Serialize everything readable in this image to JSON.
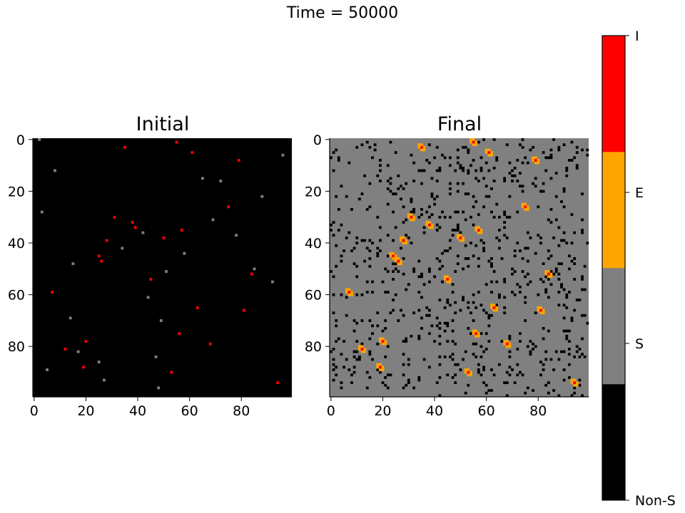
{
  "figure": {
    "suptitle": "Time = 50000"
  },
  "colors": {
    "nonS": "#000000",
    "S": "#808080",
    "E": "#ffa500",
    "I": "#ff0000"
  },
  "chart_data": [
    {
      "type": "heatmap",
      "title": "Initial",
      "grid_size": [
        100,
        100
      ],
      "x_ticks": [
        0,
        20,
        40,
        60,
        80
      ],
      "y_ticks": [
        0,
        20,
        40,
        60,
        80
      ],
      "background_state": "Non-S",
      "cells": [
        {
          "x": 35,
          "y": 3,
          "state": "I"
        },
        {
          "x": 55,
          "y": 1,
          "state": "I"
        },
        {
          "x": 61,
          "y": 5,
          "state": "I"
        },
        {
          "x": 79,
          "y": 8,
          "state": "I"
        },
        {
          "x": 75,
          "y": 26,
          "state": "I"
        },
        {
          "x": 31,
          "y": 30,
          "state": "I"
        },
        {
          "x": 38,
          "y": 32,
          "state": "I"
        },
        {
          "x": 39,
          "y": 34,
          "state": "I"
        },
        {
          "x": 57,
          "y": 35,
          "state": "I"
        },
        {
          "x": 50,
          "y": 38,
          "state": "I"
        },
        {
          "x": 28,
          "y": 39,
          "state": "I"
        },
        {
          "x": 25,
          "y": 45,
          "state": "I"
        },
        {
          "x": 26,
          "y": 47,
          "state": "I"
        },
        {
          "x": 84,
          "y": 52,
          "state": "I"
        },
        {
          "x": 45,
          "y": 54,
          "state": "I"
        },
        {
          "x": 7,
          "y": 59,
          "state": "I"
        },
        {
          "x": 63,
          "y": 65,
          "state": "I"
        },
        {
          "x": 81,
          "y": 66,
          "state": "I"
        },
        {
          "x": 56,
          "y": 75,
          "state": "I"
        },
        {
          "x": 20,
          "y": 78,
          "state": "I"
        },
        {
          "x": 68,
          "y": 79,
          "state": "I"
        },
        {
          "x": 12,
          "y": 81,
          "state": "I"
        },
        {
          "x": 19,
          "y": 88,
          "state": "I"
        },
        {
          "x": 53,
          "y": 90,
          "state": "I"
        },
        {
          "x": 94,
          "y": 94,
          "state": "I"
        },
        {
          "x": 2,
          "y": 0,
          "state": "S"
        },
        {
          "x": 8,
          "y": 12,
          "state": "S"
        },
        {
          "x": 65,
          "y": 15,
          "state": "S"
        },
        {
          "x": 72,
          "y": 16,
          "state": "S"
        },
        {
          "x": 88,
          "y": 22,
          "state": "S"
        },
        {
          "x": 3,
          "y": 28,
          "state": "S"
        },
        {
          "x": 69,
          "y": 31,
          "state": "S"
        },
        {
          "x": 42,
          "y": 36,
          "state": "S"
        },
        {
          "x": 78,
          "y": 37,
          "state": "S"
        },
        {
          "x": 34,
          "y": 42,
          "state": "S"
        },
        {
          "x": 58,
          "y": 44,
          "state": "S"
        },
        {
          "x": 15,
          "y": 48,
          "state": "S"
        },
        {
          "x": 85,
          "y": 50,
          "state": "S"
        },
        {
          "x": 51,
          "y": 51,
          "state": "S"
        },
        {
          "x": 92,
          "y": 55,
          "state": "S"
        },
        {
          "x": 44,
          "y": 61,
          "state": "S"
        },
        {
          "x": 14,
          "y": 69,
          "state": "S"
        },
        {
          "x": 49,
          "y": 70,
          "state": "S"
        },
        {
          "x": 17,
          "y": 82,
          "state": "S"
        },
        {
          "x": 47,
          "y": 84,
          "state": "S"
        },
        {
          "x": 25,
          "y": 86,
          "state": "S"
        },
        {
          "x": 5,
          "y": 89,
          "state": "S"
        },
        {
          "x": 27,
          "y": 93,
          "state": "S"
        },
        {
          "x": 48,
          "y": 96,
          "state": "S"
        },
        {
          "x": 96,
          "y": 6,
          "state": "S"
        }
      ]
    },
    {
      "type": "heatmap",
      "title": "Final",
      "grid_size": [
        100,
        100
      ],
      "x_ticks": [
        0,
        20,
        40,
        60,
        80
      ],
      "y_ticks": [
        0,
        20,
        40,
        60,
        80
      ],
      "background_state": "S",
      "scattered_state": "Non-S",
      "scattered_fraction": 0.07,
      "clusters": [
        {
          "x": 35,
          "y": 3
        },
        {
          "x": 55,
          "y": 1
        },
        {
          "x": 61,
          "y": 5
        },
        {
          "x": 79,
          "y": 8
        },
        {
          "x": 75,
          "y": 26
        },
        {
          "x": 31,
          "y": 30
        },
        {
          "x": 38,
          "y": 33
        },
        {
          "x": 57,
          "y": 35
        },
        {
          "x": 50,
          "y": 38
        },
        {
          "x": 28,
          "y": 39
        },
        {
          "x": 24,
          "y": 45
        },
        {
          "x": 26,
          "y": 47
        },
        {
          "x": 84,
          "y": 52
        },
        {
          "x": 45,
          "y": 54
        },
        {
          "x": 7,
          "y": 59
        },
        {
          "x": 63,
          "y": 65
        },
        {
          "x": 81,
          "y": 66
        },
        {
          "x": 56,
          "y": 75
        },
        {
          "x": 20,
          "y": 78
        },
        {
          "x": 68,
          "y": 79
        },
        {
          "x": 12,
          "y": 81
        },
        {
          "x": 19,
          "y": 88
        },
        {
          "x": 53,
          "y": 90
        },
        {
          "x": 94,
          "y": 94
        }
      ]
    }
  ],
  "colorbar": {
    "labels": [
      "Non-S",
      "S",
      "E",
      "I"
    ]
  }
}
